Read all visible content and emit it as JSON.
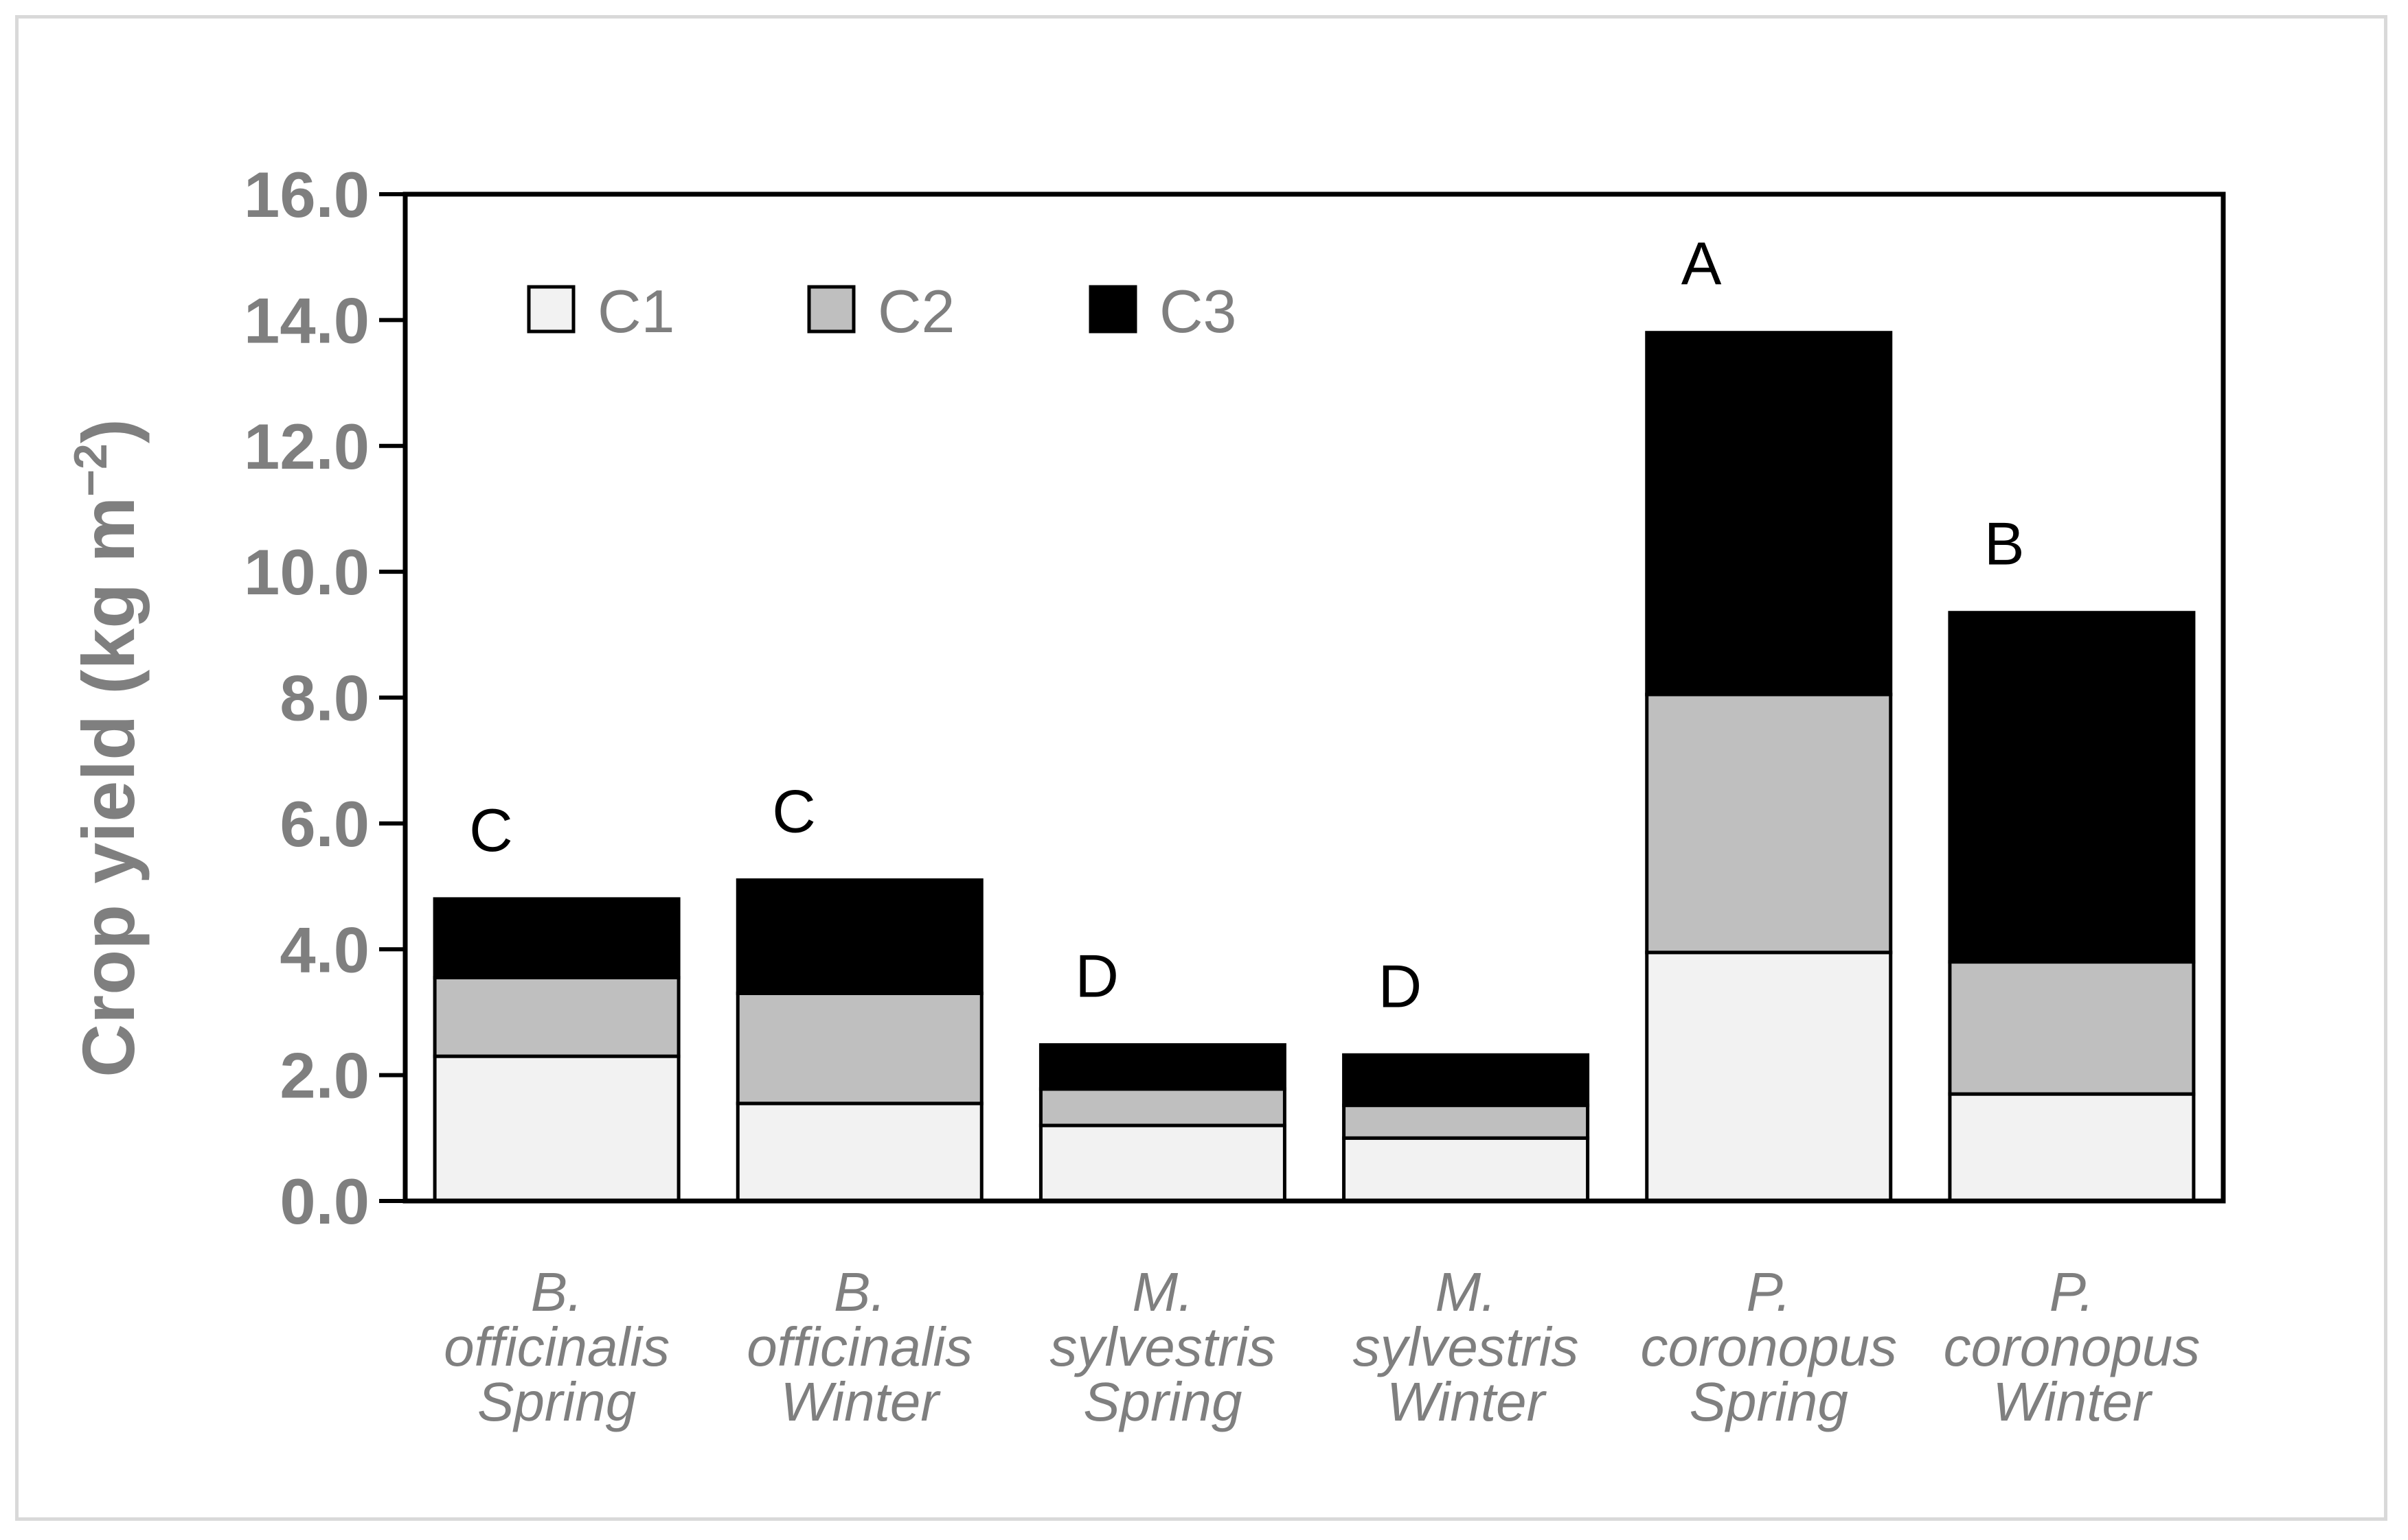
{
  "chart_data": {
    "type": "bar",
    "stacked": true,
    "title": "",
    "xlabel": "",
    "ylabel": "Crop yield (kg m",
    "ylabel_superscript": "−2",
    "ylabel_close": ")",
    "ylim": [
      0,
      16
    ],
    "yticks": [
      "0.0",
      "2.0",
      "4.0",
      "6.0",
      "8.0",
      "10.0",
      "12.0",
      "14.0",
      "16.0"
    ],
    "legend_position": "top-left inside",
    "categories": [
      [
        "B.",
        "officinalis",
        "Spring"
      ],
      [
        "B.",
        "officinalis",
        "Winter"
      ],
      [
        "M.",
        "sylvestris",
        "Spring"
      ],
      [
        "M.",
        "sylvestris",
        "Winter"
      ],
      [
        "P.",
        "coronopus",
        "Spring"
      ],
      [
        "P.",
        "coronopus",
        "Winter"
      ]
    ],
    "series": [
      {
        "name": "C1",
        "color": "#f2f2f2",
        "values": [
          2.3,
          1.55,
          1.2,
          1.0,
          3.95,
          1.7
        ]
      },
      {
        "name": "C2",
        "color": "#bfbfbf",
        "values": [
          1.25,
          1.75,
          0.58,
          0.52,
          4.1,
          2.1
        ]
      },
      {
        "name": "C3",
        "color": "#000000",
        "values": [
          1.25,
          1.8,
          0.7,
          0.8,
          5.75,
          5.55
        ]
      }
    ],
    "annotations": [
      "C",
      "C",
      "D",
      "D",
      "A",
      "B"
    ]
  }
}
